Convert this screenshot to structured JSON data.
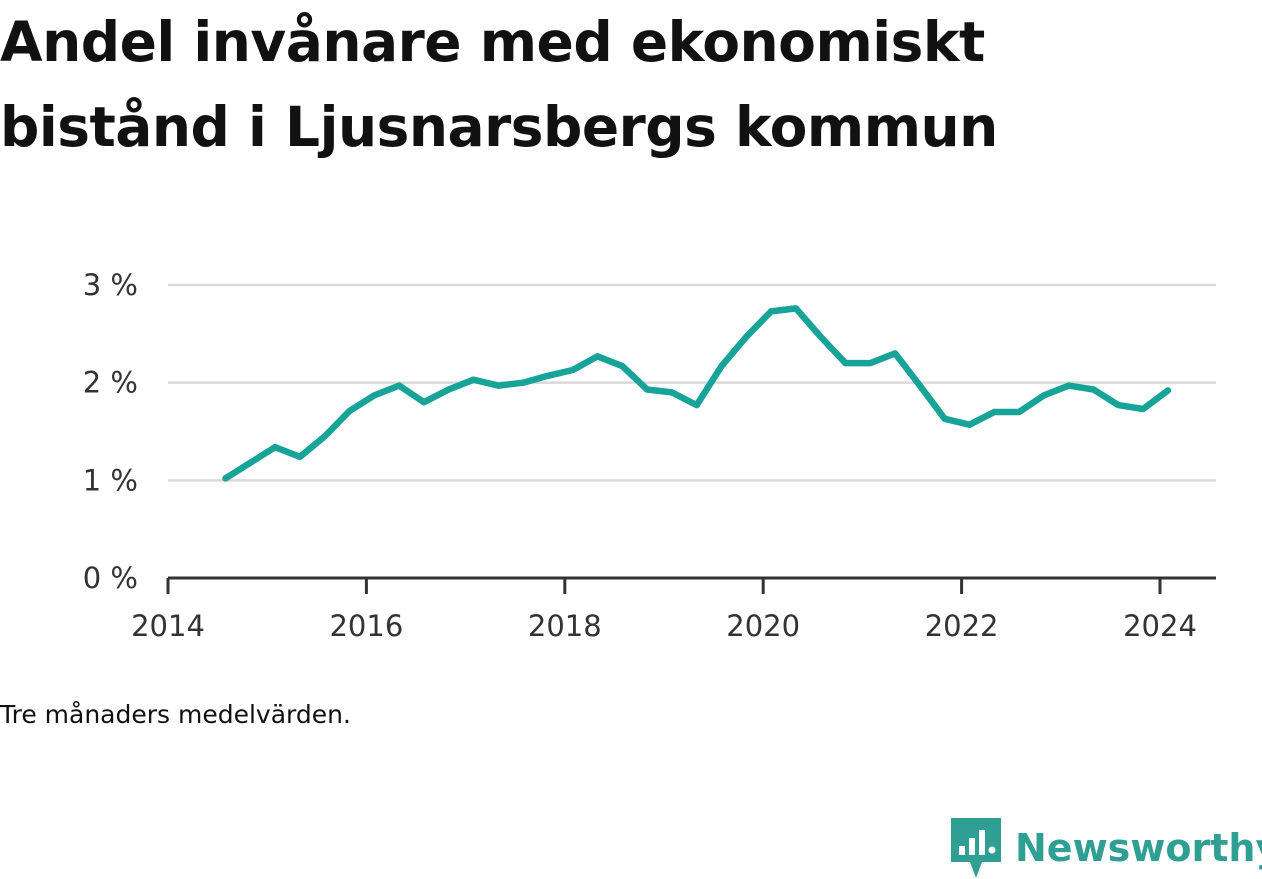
{
  "title": "Andel invånare med ekonomiskt bistånd i Ljusnarsbergs kommun",
  "note": "Tre månaders medelvärden.",
  "brand": {
    "name": "Newsworthy"
  },
  "colors": {
    "line": "#17a398",
    "grid": "#d9d9d9",
    "axis": "#333333",
    "brand": "#2f9e93"
  },
  "chart_data": {
    "type": "line",
    "title": "Andel invånare med ekonomiskt bistånd i Ljusnarsbergs kommun",
    "xlabel": "",
    "ylabel": "",
    "xlim": [
      2014,
      2024.3
    ],
    "ylim": [
      0,
      3
    ],
    "x_ticks": [
      2014,
      2016,
      2018,
      2020,
      2022,
      2024
    ],
    "x_tick_labels": [
      "2014",
      "2016",
      "2018",
      "2020",
      "2022",
      "2024"
    ],
    "y_ticks": [
      0,
      1,
      2,
      3
    ],
    "y_tick_labels": [
      "0 %",
      "1 %",
      "2 %",
      "3 %"
    ],
    "grid": true,
    "legend": "none",
    "series": [
      {
        "x": [
          2014.58,
          2014.83,
          2015.08,
          2015.33,
          2015.58,
          2015.83,
          2016.08,
          2016.33,
          2016.58,
          2016.83,
          2017.08,
          2017.33,
          2017.58,
          2017.83,
          2018.08,
          2018.33,
          2018.58,
          2018.83,
          2019.08,
          2019.33,
          2019.58,
          2019.83,
          2020.08,
          2020.33,
          2020.58,
          2020.83,
          2021.08,
          2021.33,
          2021.58,
          2021.83,
          2022.08,
          2022.33,
          2022.58,
          2022.83,
          2023.08,
          2023.33,
          2023.58,
          2023.83,
          2024.08
        ],
        "values": [
          1.02,
          1.18,
          1.34,
          1.24,
          1.45,
          1.71,
          1.87,
          1.97,
          1.8,
          1.93,
          2.03,
          1.97,
          2.0,
          2.07,
          2.13,
          2.27,
          2.17,
          1.93,
          1.9,
          1.77,
          2.17,
          2.47,
          2.73,
          2.76,
          2.47,
          2.2,
          2.2,
          2.3,
          1.97,
          1.63,
          1.57,
          1.7,
          1.7,
          1.87,
          1.97,
          1.93,
          1.77,
          1.73,
          1.92
        ]
      }
    ]
  }
}
